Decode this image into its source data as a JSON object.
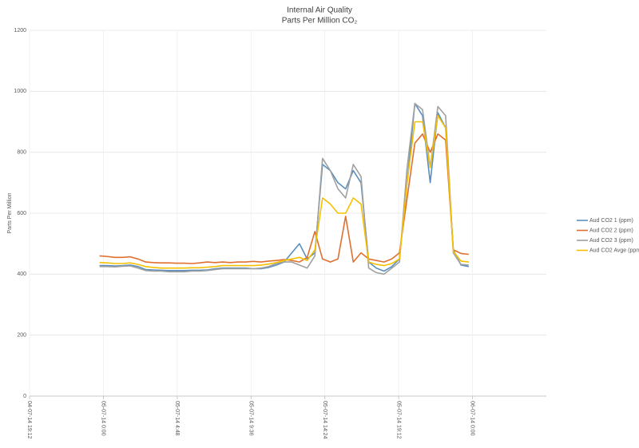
{
  "chart_data": {
    "type": "line",
    "title": "Internal Air Quality",
    "subtitle": "Parts Per Million CO₂",
    "y_label": "Parts Per Million",
    "x": [
      23.75,
      24.25,
      24.75,
      25.25,
      25.75,
      26.25,
      26.75,
      27.25,
      27.75,
      28.25,
      28.75,
      29.25,
      29.75,
      30.25,
      30.75,
      31.25,
      31.75,
      32.25,
      32.75,
      33.25,
      33.75,
      34.25,
      34.75,
      35.25,
      35.75,
      36.25,
      36.75,
      37.25,
      37.75,
      38.25,
      38.75,
      39.25,
      39.75,
      40.25,
      40.75,
      41.25,
      41.75,
      42.25,
      42.75,
      43.25,
      43.75,
      44.25,
      44.75,
      45.25,
      45.75,
      46.25,
      46.75,
      47.25,
      47.75
    ],
    "series": [
      {
        "name": "Aud CO2  1 (ppm)",
        "color": "#5b8fc0",
        "values": [
          428,
          428,
          427,
          428,
          430,
          425,
          415,
          414,
          413,
          412,
          412,
          412,
          413,
          413,
          414,
          418,
          420,
          420,
          420,
          420,
          418,
          418,
          422,
          430,
          440,
          470,
          500,
          450,
          470,
          760,
          740,
          700,
          680,
          740,
          700,
          440,
          420,
          410,
          425,
          450,
          700,
          960,
          920,
          700,
          930,
          880,
          480,
          430,
          425
        ]
      },
      {
        "name": "Aud CO2  2 (ppm)",
        "color": "#e07030",
        "values": [
          460,
          458,
          455,
          455,
          457,
          450,
          440,
          438,
          437,
          437,
          436,
          436,
          435,
          437,
          440,
          438,
          440,
          438,
          440,
          440,
          442,
          440,
          443,
          445,
          448,
          445,
          440,
          455,
          540,
          450,
          440,
          450,
          590,
          440,
          470,
          450,
          445,
          440,
          450,
          470,
          650,
          830,
          860,
          800,
          860,
          840,
          480,
          468,
          465
        ]
      },
      {
        "name": "Aud CO2  3 (ppm)",
        "color": "#a0a0a0",
        "values": [
          425,
          425,
          424,
          426,
          427,
          420,
          412,
          410,
          410,
          408,
          408,
          408,
          410,
          410,
          412,
          415,
          418,
          418,
          418,
          418,
          418,
          420,
          425,
          435,
          440,
          440,
          430,
          420,
          460,
          780,
          740,
          680,
          650,
          760,
          720,
          420,
          405,
          400,
          420,
          440,
          750,
          960,
          940,
          750,
          950,
          920,
          470,
          432,
          430
        ]
      },
      {
        "name": "Aud CO2  Avge (ppm)",
        "color": "#f5c000",
        "values": [
          438,
          437,
          435,
          435,
          437,
          432,
          425,
          422,
          420,
          420,
          420,
          420,
          421,
          421,
          423,
          425,
          428,
          428,
          428,
          428,
          428,
          430,
          433,
          438,
          445,
          450,
          455,
          445,
          480,
          650,
          630,
          600,
          600,
          650,
          630,
          440,
          432,
          428,
          435,
          450,
          700,
          900,
          900,
          750,
          920,
          880,
          475,
          443,
          440
        ]
      }
    ],
    "xlim": [
      19.2,
      52.8
    ],
    "xticks": [
      {
        "value": 19.2,
        "label": "04-07-14 19:12"
      },
      {
        "value": 24,
        "label": "05-07-14 0:00"
      },
      {
        "value": 28.8,
        "label": "05-07-14 4:48"
      },
      {
        "value": 33.6,
        "label": "05-07-14 9:36"
      },
      {
        "value": 38.4,
        "label": "05-07-14 14:24"
      },
      {
        "value": 43.2,
        "label": "05-07-14 19:12"
      },
      {
        "value": 48,
        "label": "06-07-14 0:00"
      }
    ],
    "ylim": [
      0,
      1200
    ],
    "yticks": [
      0,
      200,
      400,
      600,
      800,
      1000,
      1200
    ],
    "grid": true,
    "legend": "right"
  }
}
